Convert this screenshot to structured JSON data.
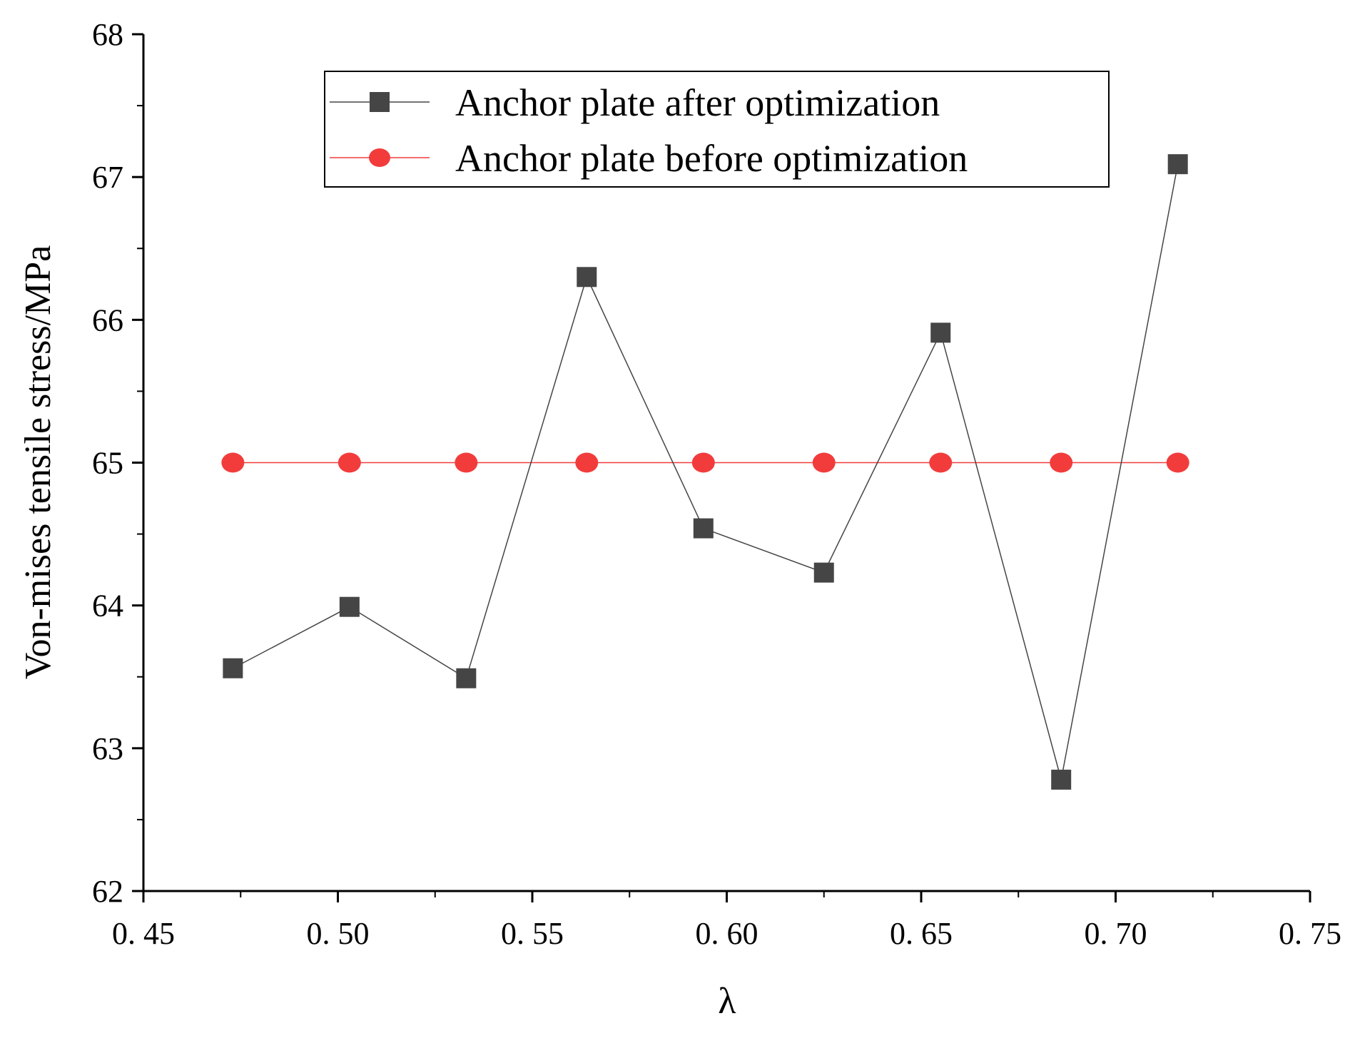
{
  "chart_data": {
    "type": "line",
    "title": "",
    "xlabel": "λ",
    "ylabel": "Von-mises tensile stress/MPa",
    "xlim": [
      0.45,
      0.75
    ],
    "ylim": [
      62,
      68
    ],
    "x_ticks": [
      "0. 45",
      "0. 50",
      "0. 55",
      "0. 60",
      "0. 65",
      "0. 70",
      "0. 75"
    ],
    "y_ticks": [
      "62",
      "63",
      "64",
      "65",
      "66",
      "67",
      "68"
    ],
    "grid": false,
    "legend_position": "top-center",
    "series": [
      {
        "name": "Anchor plate after optimization",
        "marker": "square",
        "color": "#454545",
        "x": [
          0.473,
          0.503,
          0.533,
          0.564,
          0.594,
          0.625,
          0.655,
          0.686,
          0.716
        ],
        "y": [
          63.56,
          63.99,
          63.49,
          66.3,
          64.54,
          64.23,
          65.91,
          62.78,
          67.09
        ]
      },
      {
        "name": "Anchor plate before optimization",
        "marker": "circle",
        "color": "#f23c3c",
        "x": [
          0.473,
          0.503,
          0.533,
          0.564,
          0.594,
          0.625,
          0.655,
          0.686,
          0.716
        ],
        "y": [
          65,
          65,
          65,
          65,
          65,
          65,
          65,
          65,
          65
        ]
      }
    ]
  }
}
